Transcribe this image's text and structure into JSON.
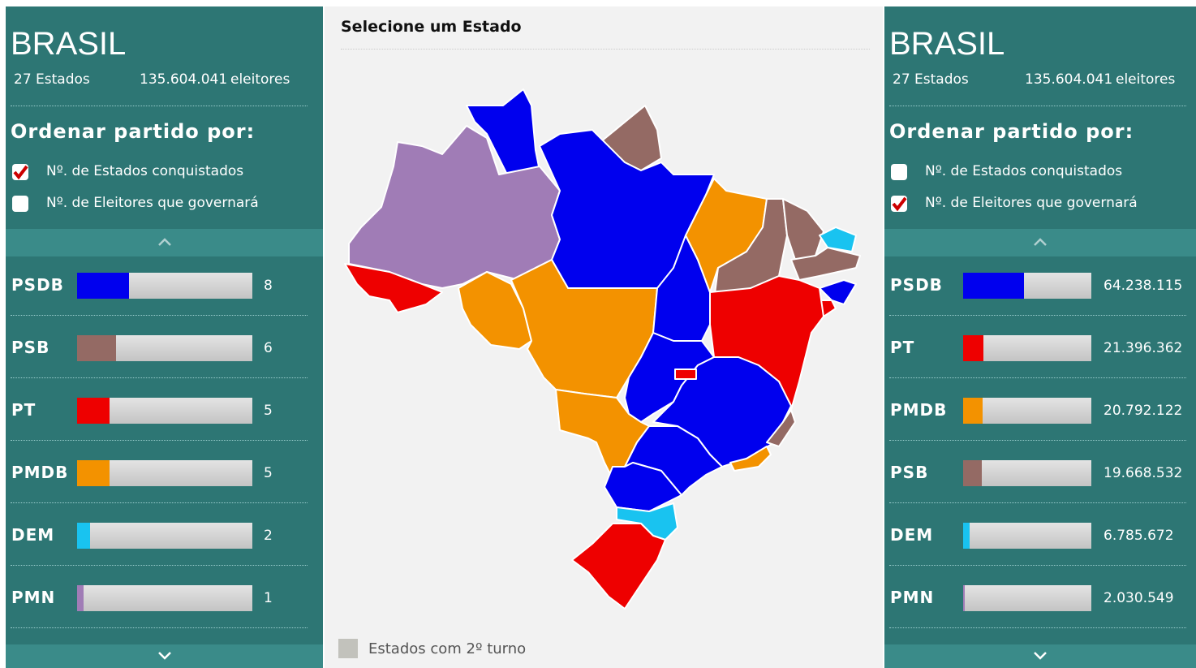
{
  "panels": [
    {
      "title": "BRASIL",
      "states": {
        "value": 27,
        "label": "27 Estados"
      },
      "voters": {
        "value": 135604041,
        "label": "135.604.041"
      },
      "voters_unit": "eleitores",
      "sort_heading": "Ordenar partido por:",
      "sort_options": [
        "Nº. de Estados conquistados",
        "Nº. de Eleitores que governará"
      ],
      "checked": 0,
      "rows": [
        {
          "party": "PSDB",
          "color": "#0000ee",
          "value": 8,
          "label": "8"
        },
        {
          "party": "PSB",
          "color": "#946a64",
          "value": 6,
          "label": "6"
        },
        {
          "party": "PT",
          "color": "#ee0000",
          "value": 5,
          "label": "5"
        },
        {
          "party": "PMDB",
          "color": "#f39200",
          "value": 5,
          "label": "5"
        },
        {
          "party": "DEM",
          "color": "#19c3f0",
          "value": 2,
          "label": "2"
        },
        {
          "party": "PMN",
          "color": "#a07cb6",
          "value": 1,
          "label": "1"
        }
      ]
    },
    {
      "title": "BRASIL",
      "states": {
        "value": 27,
        "label": "27 Estados"
      },
      "voters": {
        "value": 135604041,
        "label": "135.604.041"
      },
      "voters_unit": "eleitores",
      "sort_heading": "Ordenar partido por:",
      "sort_options": [
        "Nº. de Estados conquistados",
        "Nº. de Eleitores que governará"
      ],
      "checked": 1,
      "rows": [
        {
          "party": "PSDB",
          "color": "#0000ee",
          "value": 64238115,
          "label": "64.238.115"
        },
        {
          "party": "PT",
          "color": "#ee0000",
          "value": 21396362,
          "label": "21.396.362"
        },
        {
          "party": "PMDB",
          "color": "#f39200",
          "value": 20792122,
          "label": "20.792.122"
        },
        {
          "party": "PSB",
          "color": "#946a64",
          "value": 19668532,
          "label": "19.668.532"
        },
        {
          "party": "DEM",
          "color": "#19c3f0",
          "value": 6785672,
          "label": "6.785.672"
        },
        {
          "party": "PMN",
          "color": "#a07cb6",
          "value": 2030549,
          "label": "2.030.549"
        }
      ]
    }
  ],
  "map": {
    "title": "Selecione um Estado",
    "legend": "Estados com 2º turno"
  }
}
